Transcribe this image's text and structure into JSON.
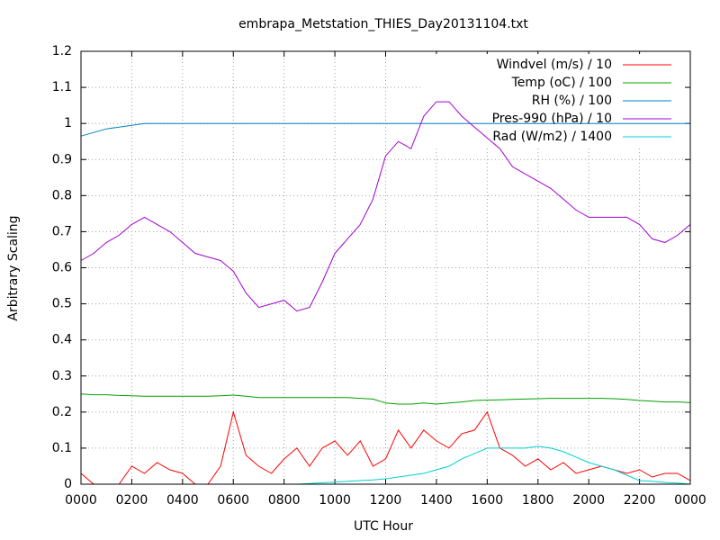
{
  "chart_data": {
    "type": "line",
    "title": "embrapa_Metstation_THIES_Day20131104.txt",
    "xlabel": "UTC Hour",
    "ylabel": "Arbitrary Scaling",
    "xlim": [
      0,
      24
    ],
    "ylim": [
      0,
      1.2
    ],
    "xticks": [
      {
        "value": 0,
        "label": "0000"
      },
      {
        "value": 2,
        "label": "0200"
      },
      {
        "value": 4,
        "label": "0400"
      },
      {
        "value": 6,
        "label": "0600"
      },
      {
        "value": 8,
        "label": "0800"
      },
      {
        "value": 10,
        "label": "1000"
      },
      {
        "value": 12,
        "label": "1200"
      },
      {
        "value": 14,
        "label": "1400"
      },
      {
        "value": 16,
        "label": "1600"
      },
      {
        "value": 18,
        "label": "1800"
      },
      {
        "value": 20,
        "label": "2000"
      },
      {
        "value": 22,
        "label": "2200"
      },
      {
        "value": 24,
        "label": "0000"
      }
    ],
    "yticks": [
      0,
      0.1,
      0.2,
      0.3,
      0.4,
      0.5,
      0.6,
      0.7,
      0.8,
      0.9,
      1,
      1.1,
      1.2
    ],
    "grid": true,
    "legend": "top-right",
    "x": [
      0,
      0.5,
      1,
      1.5,
      2,
      2.5,
      3,
      3.5,
      4,
      4.5,
      5,
      5.5,
      6,
      6.5,
      7,
      7.5,
      8,
      8.5,
      9,
      9.5,
      10,
      10.5,
      11,
      11.5,
      12,
      12.5,
      13,
      13.5,
      14,
      14.5,
      15,
      15.5,
      16,
      16.5,
      17,
      17.5,
      18,
      18.5,
      19,
      19.5,
      20,
      20.5,
      21,
      21.5,
      22,
      22.5,
      23,
      23.5,
      24
    ],
    "series": [
      {
        "name": "Windvel (m/s) / 10",
        "color": "#ff0000",
        "values": [
          0.03,
          0,
          0,
          0,
          0.05,
          0.03,
          0.06,
          0.04,
          0.03,
          0,
          0,
          0.05,
          0.2,
          0.08,
          0.05,
          0.03,
          0.07,
          0.1,
          0.05,
          0.1,
          0.12,
          0.08,
          0.12,
          0.05,
          0.07,
          0.15,
          0.1,
          0.15,
          0.12,
          0.1,
          0.14,
          0.15,
          0.2,
          0.1,
          0.08,
          0.05,
          0.07,
          0.04,
          0.06,
          0.03,
          0.04,
          0.05,
          0.04,
          0.03,
          0.04,
          0.02,
          0.03,
          0.03,
          0.01
        ]
      },
      {
        "name": "Temp (oC) / 100",
        "color": "#00a000",
        "values": [
          0.25,
          0.248,
          0.248,
          0.246,
          0.245,
          0.244,
          0.244,
          0.244,
          0.244,
          0.244,
          0.244,
          0.245,
          0.247,
          0.244,
          0.24,
          0.24,
          0.24,
          0.24,
          0.24,
          0.24,
          0.24,
          0.24,
          0.238,
          0.236,
          0.225,
          0.222,
          0.222,
          0.225,
          0.222,
          0.225,
          0.228,
          0.232,
          0.233,
          0.234,
          0.235,
          0.236,
          0.237,
          0.238,
          0.238,
          0.238,
          0.238,
          0.238,
          0.237,
          0.235,
          0.232,
          0.23,
          0.228,
          0.228,
          0.226
        ]
      },
      {
        "name": "RH (%) / 100",
        "color": "#0080c0",
        "values": [
          0.965,
          0.975,
          0.985,
          0.99,
          0.995,
          1,
          1,
          1,
          1,
          1,
          1,
          1,
          1,
          1,
          1,
          1,
          1,
          1,
          1,
          1,
          1,
          1,
          1,
          1,
          1,
          1,
          1,
          1,
          1,
          1,
          1,
          1,
          1,
          1,
          1,
          1,
          1,
          1,
          1,
          1,
          1,
          1,
          1,
          1,
          1,
          1,
          1,
          1,
          1
        ]
      },
      {
        "name": "Pres-990 (hPa) / 10",
        "color": "#a000d0",
        "values": [
          0.62,
          0.64,
          0.67,
          0.69,
          0.72,
          0.74,
          0.72,
          0.7,
          0.67,
          0.64,
          0.63,
          0.62,
          0.59,
          0.53,
          0.49,
          0.5,
          0.51,
          0.48,
          0.49,
          0.56,
          0.64,
          0.68,
          0.72,
          0.79,
          0.91,
          0.95,
          0.93,
          1.02,
          1.06,
          1.06,
          1.02,
          0.99,
          0.96,
          0.93,
          0.88,
          0.86,
          0.84,
          0.82,
          0.79,
          0.76,
          0.74,
          0.74,
          0.74,
          0.74,
          0.72,
          0.68,
          0.67,
          0.69,
          0.72
        ]
      },
      {
        "name": "Rad (W/m2) / 1400",
        "color": "#00d0d0",
        "values": [
          0,
          0,
          0,
          0,
          0,
          0,
          0,
          0,
          0,
          0,
          0,
          0,
          0,
          0,
          0,
          0,
          0,
          0,
          0.002,
          0.004,
          0.006,
          0.008,
          0.01,
          0.012,
          0.015,
          0.02,
          0.025,
          0.03,
          0.04,
          0.05,
          0.07,
          0.085,
          0.1,
          0.1,
          0.1,
          0.1,
          0.105,
          0.1,
          0.09,
          0.075,
          0.06,
          0.05,
          0.04,
          0.025,
          0.01,
          0.008,
          0.005,
          0.003,
          0
        ]
      }
    ]
  }
}
